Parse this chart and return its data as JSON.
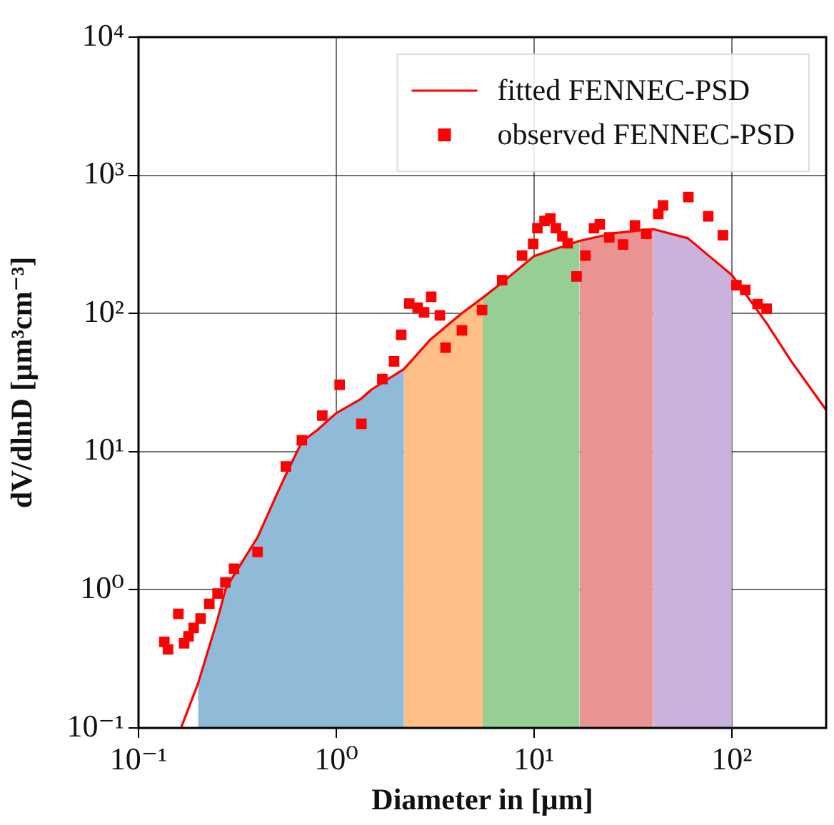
{
  "chart_data": {
    "type": "scatter",
    "xlabel": "Diameter in [µm]",
    "ylabel": "dV/dlnD [µm³cm⁻³]",
    "log": "xy",
    "grid": true,
    "legend": "top right",
    "xlim": [
      0.1,
      300
    ],
    "xticks": [
      {
        "value": 0.1,
        "label": "10⁻¹"
      },
      {
        "value": 1,
        "label": "10⁰"
      },
      {
        "value": 10,
        "label": "10¹"
      },
      {
        "value": 100,
        "label": "10²"
      }
    ],
    "ylim": [
      0.1,
      10000
    ],
    "yticks": [
      {
        "value": 0.1,
        "label": "10⁻¹"
      },
      {
        "value": 1,
        "label": "10⁰"
      },
      {
        "value": 10,
        "label": "10¹"
      },
      {
        "value": 100,
        "label": "10²"
      },
      {
        "value": 1000,
        "label": "10³"
      },
      {
        "value": 10000,
        "label": "10⁴"
      }
    ],
    "series": [
      {
        "type": "area",
        "color": "#8fbbd9",
        "x": [
          0.2,
          0.25,
          0.275,
          0.3,
          0.4,
          0.5,
          0.556,
          0.67,
          0.8,
          1,
          1.33,
          1.5,
          2.2
        ],
        "values": [
          0.21,
          0.6,
          1,
          1.24,
          2.4,
          4.9,
          6.8,
          11.8,
          14.3,
          19,
          24,
          28,
          39.6
        ]
      },
      {
        "type": "area",
        "color": "#ffbf86",
        "x": [
          2.2,
          3,
          4.3,
          5.5
        ],
        "values": [
          39.6,
          65,
          100,
          130
        ]
      },
      {
        "type": "area",
        "color": "#95cf95",
        "x": [
          5.5,
          7,
          10,
          17
        ],
        "values": [
          130,
          170,
          260,
          335
        ]
      },
      {
        "type": "area",
        "color": "#ea9393",
        "x": [
          17,
          25,
          40
        ],
        "values": [
          335,
          380,
          408
        ]
      },
      {
        "type": "area",
        "color": "#c9b3dc",
        "x": [
          40,
          60,
          100
        ],
        "values": [
          408,
          350,
          190
        ]
      },
      {
        "type": "line",
        "name": "fitted FENNEC-PSD",
        "color": "#ff0000",
        "marker": "none",
        "x": [
          0.164,
          0.2,
          0.25,
          0.275,
          0.3,
          0.4,
          0.5,
          0.556,
          0.67,
          0.8,
          1,
          1.33,
          1.5,
          2.2,
          3,
          4.3,
          5.5,
          7,
          10,
          17,
          25,
          40,
          60,
          100,
          150,
          200,
          300
        ],
        "values": [
          0.1,
          0.21,
          0.6,
          1,
          1.24,
          2.4,
          4.9,
          6.8,
          11.8,
          14.3,
          19,
          24,
          28,
          39.6,
          65,
          100,
          130,
          170,
          260,
          335,
          380,
          408,
          350,
          190,
          85,
          45,
          20
        ]
      },
      {
        "type": "scatter",
        "name": "observed FENNEC-PSD",
        "color": "#ff0000",
        "marker": "square",
        "x": [
          0.135,
          0.141,
          0.159,
          0.17,
          0.179,
          0.19,
          0.206,
          0.228,
          0.251,
          0.275,
          0.304,
          0.4,
          0.556,
          0.67,
          0.85,
          1.04,
          1.34,
          1.71,
          1.96,
          2.13,
          2.34,
          2.58,
          2.78,
          3.02,
          3.34,
          3.57,
          4.32,
          5.46,
          6.9,
          8.7,
          9.9,
          10.4,
          11.3,
          12.1,
          12.9,
          13.9,
          14.8,
          16.4,
          18.2,
          20.1,
          21.5,
          24,
          28.2,
          32.4,
          37,
          42.5,
          44.9,
          60.3,
          76,
          90.2,
          105.5,
          117,
          135,
          150
        ],
        "values": [
          0.42,
          0.37,
          0.67,
          0.41,
          0.46,
          0.53,
          0.62,
          0.79,
          0.94,
          1.13,
          1.42,
          1.88,
          7.8,
          12.1,
          18.2,
          30.5,
          15.9,
          33.5,
          45,
          70,
          118,
          110,
          102,
          132,
          97,
          56.5,
          75.5,
          106,
          174,
          262,
          318,
          414,
          467,
          487,
          414,
          362,
          322,
          185,
          262,
          414,
          441,
          355,
          315,
          434,
          377,
          525,
          605,
          695,
          505,
          368,
          160,
          148,
          117,
          108
        ]
      }
    ]
  }
}
